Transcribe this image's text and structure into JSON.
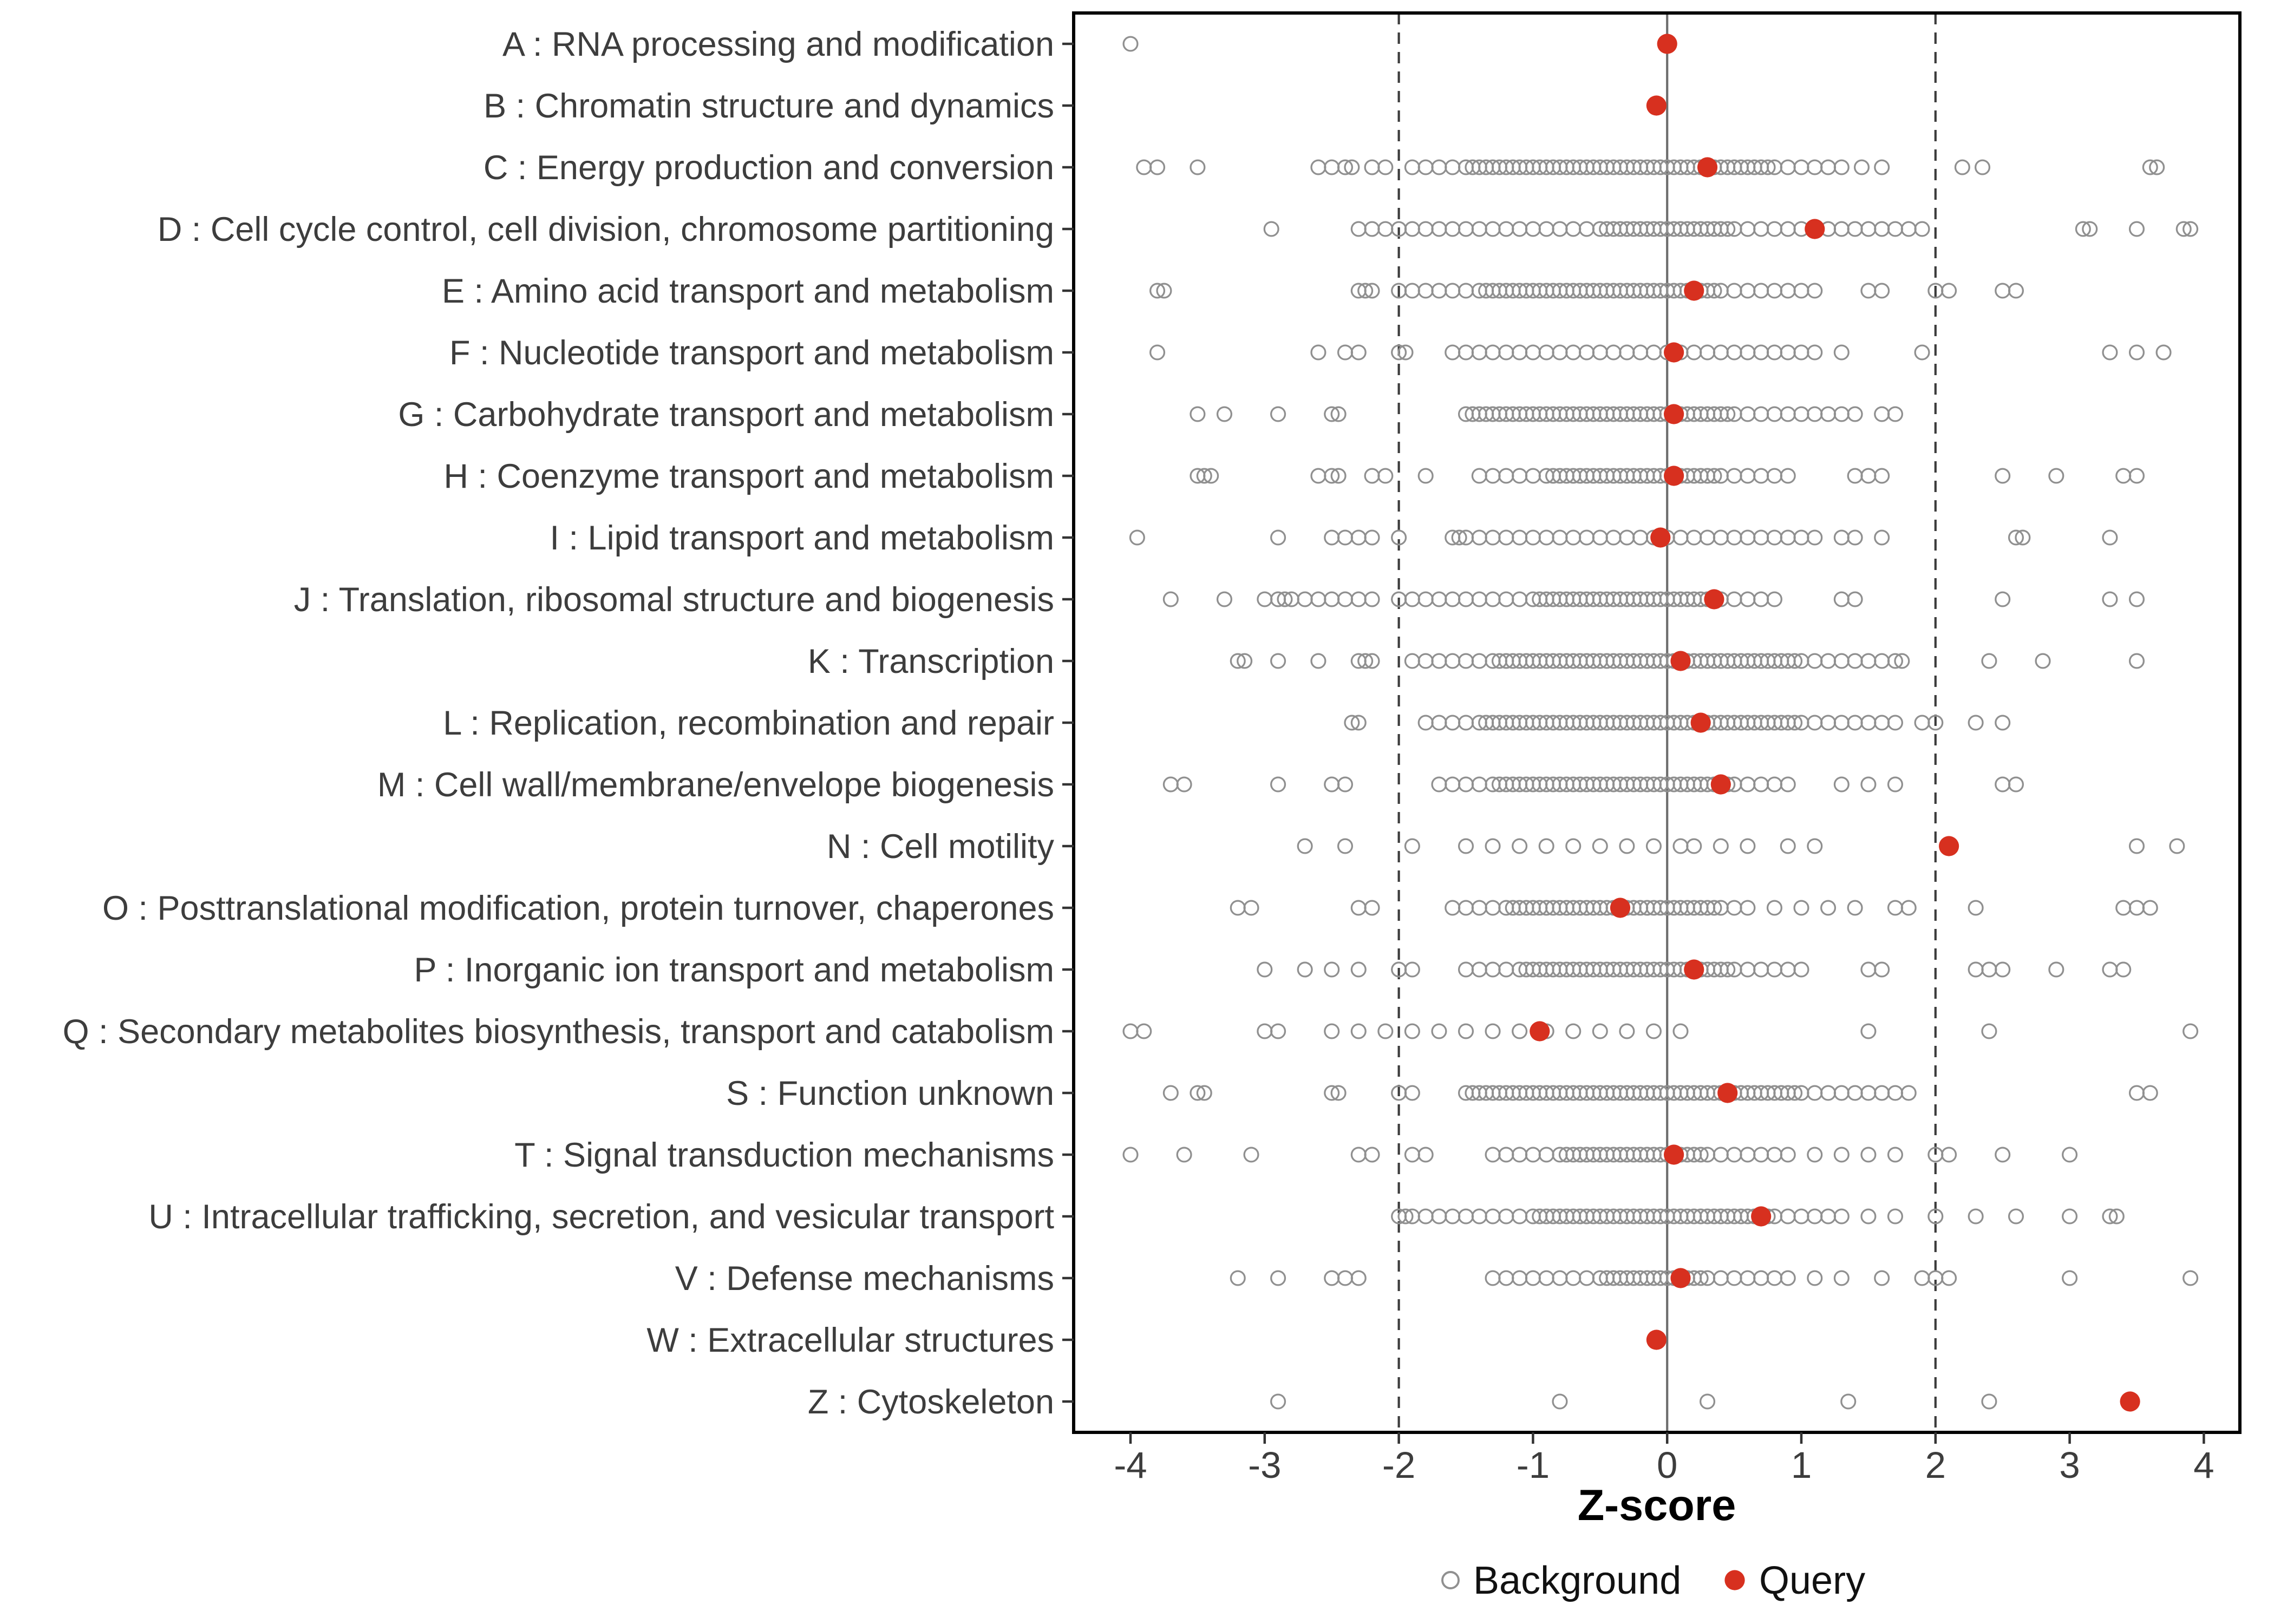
{
  "chart_data": {
    "type": "scatter",
    "variant": "strip-dot-plot",
    "xlabel": "Z-score",
    "xlim": [
      -4.45,
      4.3
    ],
    "x_ticks": [
      -4,
      -3,
      -2,
      -1,
      0,
      1,
      2,
      3,
      4
    ],
    "reference_lines": {
      "solid": [
        0
      ],
      "dashed": [
        -2,
        2
      ]
    },
    "legend": {
      "background_label": "Background",
      "query_label": "Query"
    },
    "colors": {
      "background_stroke": "#909090",
      "query_fill": "#d7301f",
      "zero_line": "#6e6e6e",
      "ref_line": "#3c3c3c",
      "panel_border": "#000000",
      "label_text": "#3d3d3d"
    },
    "categories": [
      {
        "label": "A : RNA processing and modification",
        "query": 0.0,
        "background": [
          -4.0
        ]
      },
      {
        "label": "B : Chromatin structure and dynamics",
        "query": -0.08,
        "background": []
      },
      {
        "label": "C : Energy production and conversion",
        "query": 0.3,
        "background": [
          -3.9,
          -3.8,
          -3.5,
          -2.6,
          -2.5,
          -2.4,
          -2.35,
          -2.2,
          -2.1,
          -1.9,
          -1.8,
          -1.7,
          -1.6,
          -1.5,
          -1.45,
          -1.4,
          -1.35,
          -1.3,
          -1.25,
          -1.2,
          -1.15,
          -1.1,
          -1.05,
          -1.0,
          -0.95,
          -0.9,
          -0.85,
          -0.8,
          -0.75,
          -0.7,
          -0.65,
          -0.6,
          -0.55,
          -0.5,
          -0.45,
          -0.4,
          -0.35,
          -0.3,
          -0.25,
          -0.2,
          -0.15,
          -0.1,
          -0.05,
          0.0,
          0.05,
          0.1,
          0.15,
          0.2,
          0.25,
          0.3,
          0.35,
          0.4,
          0.45,
          0.5,
          0.55,
          0.6,
          0.65,
          0.7,
          0.75,
          0.8,
          0.9,
          1.0,
          1.1,
          1.2,
          1.3,
          1.45,
          1.6,
          2.2,
          2.35,
          3.6,
          3.65
        ]
      },
      {
        "label": "D : Cell cycle control, cell division, chromosome partitioning",
        "query": 1.1,
        "background": [
          -2.95,
          -2.3,
          -2.2,
          -2.1,
          -2.0,
          -1.9,
          -1.8,
          -1.7,
          -1.6,
          -1.5,
          -1.4,
          -1.3,
          -1.2,
          -1.1,
          -1.0,
          -0.9,
          -0.8,
          -0.7,
          -0.6,
          -0.5,
          -0.45,
          -0.4,
          -0.35,
          -0.3,
          -0.25,
          -0.2,
          -0.15,
          -0.1,
          -0.05,
          0.0,
          0.05,
          0.1,
          0.15,
          0.2,
          0.25,
          0.3,
          0.35,
          0.4,
          0.45,
          0.5,
          0.6,
          0.7,
          0.8,
          0.9,
          1.0,
          1.1,
          1.2,
          1.3,
          1.4,
          1.5,
          1.6,
          1.7,
          1.8,
          1.9,
          3.1,
          3.15,
          3.5,
          3.85,
          3.9
        ]
      },
      {
        "label": "E : Amino acid transport and metabolism",
        "query": 0.2,
        "background": [
          -3.8,
          -3.75,
          -2.3,
          -2.25,
          -2.2,
          -2.0,
          -1.9,
          -1.8,
          -1.7,
          -1.6,
          -1.5,
          -1.4,
          -1.35,
          -1.3,
          -1.25,
          -1.2,
          -1.15,
          -1.1,
          -1.05,
          -1.0,
          -0.95,
          -0.9,
          -0.85,
          -0.8,
          -0.75,
          -0.7,
          -0.65,
          -0.6,
          -0.55,
          -0.5,
          -0.45,
          -0.4,
          -0.35,
          -0.3,
          -0.25,
          -0.2,
          -0.15,
          -0.1,
          -0.05,
          0.0,
          0.05,
          0.1,
          0.15,
          0.2,
          0.25,
          0.3,
          0.35,
          0.4,
          0.5,
          0.6,
          0.7,
          0.8,
          0.9,
          1.0,
          1.1,
          1.5,
          1.6,
          2.0,
          2.1,
          2.5,
          2.6
        ]
      },
      {
        "label": "F : Nucleotide transport and metabolism",
        "query": 0.05,
        "background": [
          -3.8,
          -2.6,
          -2.4,
          -2.3,
          -2.0,
          -1.95,
          -1.6,
          -1.5,
          -1.4,
          -1.3,
          -1.2,
          -1.1,
          -1.0,
          -0.9,
          -0.8,
          -0.7,
          -0.6,
          -0.5,
          -0.4,
          -0.3,
          -0.2,
          -0.1,
          0.0,
          0.1,
          0.2,
          0.3,
          0.4,
          0.5,
          0.6,
          0.7,
          0.8,
          0.9,
          1.0,
          1.1,
          1.3,
          1.9,
          3.3,
          3.5,
          3.7
        ]
      },
      {
        "label": "G : Carbohydrate transport and metabolism",
        "query": 0.05,
        "background": [
          -3.5,
          -3.3,
          -2.9,
          -2.5,
          -2.45,
          -1.5,
          -1.45,
          -1.4,
          -1.35,
          -1.3,
          -1.25,
          -1.2,
          -1.15,
          -1.1,
          -1.05,
          -1.0,
          -0.95,
          -0.9,
          -0.85,
          -0.8,
          -0.75,
          -0.7,
          -0.65,
          -0.6,
          -0.55,
          -0.5,
          -0.45,
          -0.4,
          -0.35,
          -0.3,
          -0.25,
          -0.2,
          -0.15,
          -0.1,
          -0.05,
          0.0,
          0.05,
          0.1,
          0.15,
          0.2,
          0.25,
          0.3,
          0.35,
          0.4,
          0.45,
          0.5,
          0.6,
          0.7,
          0.8,
          0.9,
          1.0,
          1.1,
          1.2,
          1.3,
          1.4,
          1.6,
          1.7
        ]
      },
      {
        "label": "H : Coenzyme transport and metabolism",
        "query": 0.05,
        "background": [
          -3.5,
          -3.45,
          -3.4,
          -2.6,
          -2.5,
          -2.45,
          -2.2,
          -2.1,
          -1.8,
          -1.4,
          -1.3,
          -1.2,
          -1.1,
          -1.0,
          -0.9,
          -0.85,
          -0.8,
          -0.75,
          -0.7,
          -0.65,
          -0.6,
          -0.55,
          -0.5,
          -0.45,
          -0.4,
          -0.35,
          -0.3,
          -0.25,
          -0.2,
          -0.15,
          -0.1,
          -0.05,
          0.0,
          0.05,
          0.1,
          0.15,
          0.2,
          0.25,
          0.3,
          0.35,
          0.4,
          0.5,
          0.6,
          0.7,
          0.8,
          0.9,
          1.4,
          1.5,
          1.6,
          2.5,
          2.9,
          3.4,
          3.5
        ]
      },
      {
        "label": "I : Lipid transport and metabolism",
        "query": -0.05,
        "background": [
          -3.95,
          -2.9,
          -2.5,
          -2.4,
          -2.3,
          -2.2,
          -2.0,
          -1.6,
          -1.55,
          -1.5,
          -1.4,
          -1.3,
          -1.2,
          -1.1,
          -1.0,
          -0.9,
          -0.8,
          -0.7,
          -0.6,
          -0.5,
          -0.4,
          -0.3,
          -0.2,
          -0.1,
          0.0,
          0.1,
          0.2,
          0.3,
          0.4,
          0.5,
          0.6,
          0.7,
          0.8,
          0.9,
          1.0,
          1.1,
          1.3,
          1.4,
          1.6,
          2.6,
          2.65,
          3.3
        ]
      },
      {
        "label": "J : Translation, ribosomal structure and biogenesis",
        "query": 0.35,
        "background": [
          -3.7,
          -3.3,
          -3.0,
          -2.9,
          -2.85,
          -2.8,
          -2.7,
          -2.6,
          -2.5,
          -2.4,
          -2.3,
          -2.2,
          -2.0,
          -1.9,
          -1.8,
          -1.7,
          -1.6,
          -1.5,
          -1.4,
          -1.3,
          -1.2,
          -1.1,
          -1.0,
          -0.95,
          -0.9,
          -0.85,
          -0.8,
          -0.75,
          -0.7,
          -0.65,
          -0.6,
          -0.55,
          -0.5,
          -0.45,
          -0.4,
          -0.35,
          -0.3,
          -0.25,
          -0.2,
          -0.15,
          -0.1,
          -0.05,
          0.0,
          0.05,
          0.1,
          0.15,
          0.2,
          0.25,
          0.3,
          0.35,
          0.4,
          0.5,
          0.6,
          0.7,
          0.8,
          1.3,
          1.4,
          2.5,
          3.3,
          3.5
        ]
      },
      {
        "label": "K : Transcription",
        "query": 0.1,
        "background": [
          -3.2,
          -3.15,
          -2.9,
          -2.6,
          -2.3,
          -2.25,
          -2.2,
          -1.9,
          -1.8,
          -1.7,
          -1.6,
          -1.5,
          -1.4,
          -1.3,
          -1.25,
          -1.2,
          -1.15,
          -1.1,
          -1.05,
          -1.0,
          -0.95,
          -0.9,
          -0.85,
          -0.8,
          -0.75,
          -0.7,
          -0.65,
          -0.6,
          -0.55,
          -0.5,
          -0.45,
          -0.4,
          -0.35,
          -0.3,
          -0.25,
          -0.2,
          -0.15,
          -0.1,
          -0.05,
          0.0,
          0.05,
          0.1,
          0.15,
          0.2,
          0.25,
          0.3,
          0.35,
          0.4,
          0.45,
          0.5,
          0.55,
          0.6,
          0.65,
          0.7,
          0.75,
          0.8,
          0.85,
          0.9,
          0.95,
          1.0,
          1.1,
          1.2,
          1.3,
          1.4,
          1.5,
          1.6,
          1.7,
          1.75,
          2.4,
          2.8,
          3.5
        ]
      },
      {
        "label": "L : Replication, recombination and repair",
        "query": 0.25,
        "background": [
          -2.35,
          -2.3,
          -1.8,
          -1.7,
          -1.6,
          -1.5,
          -1.4,
          -1.35,
          -1.3,
          -1.25,
          -1.2,
          -1.15,
          -1.1,
          -1.05,
          -1.0,
          -0.95,
          -0.9,
          -0.85,
          -0.8,
          -0.75,
          -0.7,
          -0.65,
          -0.6,
          -0.55,
          -0.5,
          -0.45,
          -0.4,
          -0.35,
          -0.3,
          -0.25,
          -0.2,
          -0.15,
          -0.1,
          -0.05,
          0.0,
          0.05,
          0.1,
          0.15,
          0.2,
          0.25,
          0.3,
          0.35,
          0.4,
          0.45,
          0.5,
          0.55,
          0.6,
          0.65,
          0.7,
          0.75,
          0.8,
          0.85,
          0.9,
          0.95,
          1.0,
          1.1,
          1.2,
          1.3,
          1.4,
          1.5,
          1.6,
          1.7,
          1.9,
          2.0,
          2.3,
          2.5
        ]
      },
      {
        "label": "M : Cell wall/membrane/envelope biogenesis",
        "query": 0.4,
        "background": [
          -3.7,
          -3.6,
          -2.9,
          -2.5,
          -2.4,
          -1.7,
          -1.6,
          -1.5,
          -1.4,
          -1.3,
          -1.25,
          -1.2,
          -1.15,
          -1.1,
          -1.05,
          -1.0,
          -0.95,
          -0.9,
          -0.85,
          -0.8,
          -0.75,
          -0.7,
          -0.65,
          -0.6,
          -0.55,
          -0.5,
          -0.45,
          -0.4,
          -0.35,
          -0.3,
          -0.25,
          -0.2,
          -0.15,
          -0.1,
          -0.05,
          0.0,
          0.05,
          0.1,
          0.15,
          0.2,
          0.25,
          0.3,
          0.35,
          0.4,
          0.45,
          0.5,
          0.6,
          0.7,
          0.8,
          0.9,
          1.3,
          1.5,
          1.7,
          2.5,
          2.6
        ]
      },
      {
        "label": "N : Cell motility",
        "query": 2.1,
        "background": [
          -2.7,
          -2.4,
          -1.9,
          -1.5,
          -1.3,
          -1.1,
          -0.9,
          -0.7,
          -0.5,
          -0.3,
          -0.1,
          0.1,
          0.2,
          0.4,
          0.6,
          0.9,
          1.1,
          3.5,
          3.8
        ]
      },
      {
        "label": "O : Posttranslational modification, protein turnover, chaperones",
        "query": -0.35,
        "background": [
          -3.2,
          -3.1,
          -2.3,
          -2.2,
          -1.6,
          -1.5,
          -1.4,
          -1.3,
          -1.2,
          -1.15,
          -1.1,
          -1.05,
          -1.0,
          -0.95,
          -0.9,
          -0.85,
          -0.8,
          -0.75,
          -0.7,
          -0.65,
          -0.6,
          -0.55,
          -0.5,
          -0.45,
          -0.4,
          -0.35,
          -0.3,
          -0.25,
          -0.2,
          -0.15,
          -0.1,
          -0.05,
          0.0,
          0.05,
          0.1,
          0.15,
          0.2,
          0.25,
          0.3,
          0.35,
          0.4,
          0.5,
          0.6,
          0.8,
          1.0,
          1.2,
          1.4,
          1.7,
          1.8,
          2.3,
          3.4,
          3.5,
          3.6
        ]
      },
      {
        "label": "P : Inorganic ion transport and metabolism",
        "query": 0.2,
        "background": [
          -3.0,
          -2.7,
          -2.5,
          -2.3,
          -2.0,
          -1.9,
          -1.5,
          -1.4,
          -1.3,
          -1.2,
          -1.1,
          -1.05,
          -1.0,
          -0.95,
          -0.9,
          -0.85,
          -0.8,
          -0.75,
          -0.7,
          -0.65,
          -0.6,
          -0.55,
          -0.5,
          -0.45,
          -0.4,
          -0.35,
          -0.3,
          -0.25,
          -0.2,
          -0.15,
          -0.1,
          -0.05,
          0.0,
          0.05,
          0.1,
          0.15,
          0.2,
          0.25,
          0.3,
          0.35,
          0.4,
          0.45,
          0.5,
          0.6,
          0.7,
          0.8,
          0.9,
          1.0,
          1.5,
          1.6,
          2.3,
          2.4,
          2.5,
          2.9,
          3.3,
          3.4
        ]
      },
      {
        "label": "Q : Secondary metabolites biosynthesis, transport and catabolism",
        "query": -0.95,
        "background": [
          -4.0,
          -3.9,
          -3.0,
          -2.9,
          -2.5,
          -2.3,
          -2.1,
          -1.9,
          -1.7,
          -1.5,
          -1.3,
          -1.1,
          -0.9,
          -0.7,
          -0.5,
          -0.3,
          -0.1,
          0.1,
          1.5,
          2.4,
          3.9
        ]
      },
      {
        "label": "S : Function unknown",
        "query": 0.45,
        "background": [
          -3.7,
          -3.5,
          -3.45,
          -2.5,
          -2.45,
          -2.0,
          -1.9,
          -1.5,
          -1.45,
          -1.4,
          -1.35,
          -1.3,
          -1.25,
          -1.2,
          -1.15,
          -1.1,
          -1.05,
          -1.0,
          -0.95,
          -0.9,
          -0.85,
          -0.8,
          -0.75,
          -0.7,
          -0.65,
          -0.6,
          -0.55,
          -0.5,
          -0.45,
          -0.4,
          -0.35,
          -0.3,
          -0.25,
          -0.2,
          -0.15,
          -0.1,
          -0.05,
          0.0,
          0.05,
          0.1,
          0.15,
          0.2,
          0.25,
          0.3,
          0.35,
          0.4,
          0.45,
          0.5,
          0.55,
          0.6,
          0.65,
          0.7,
          0.75,
          0.8,
          0.85,
          0.9,
          0.95,
          1.0,
          1.1,
          1.2,
          1.3,
          1.4,
          1.5,
          1.6,
          1.7,
          1.8,
          3.5,
          3.6
        ]
      },
      {
        "label": "T : Signal transduction mechanisms",
        "query": 0.05,
        "background": [
          -4.0,
          -3.6,
          -3.1,
          -2.3,
          -2.2,
          -1.9,
          -1.8,
          -1.3,
          -1.2,
          -1.1,
          -1.0,
          -0.9,
          -0.8,
          -0.75,
          -0.7,
          -0.65,
          -0.6,
          -0.55,
          -0.5,
          -0.45,
          -0.4,
          -0.35,
          -0.3,
          -0.25,
          -0.2,
          -0.15,
          -0.1,
          -0.05,
          0.0,
          0.05,
          0.1,
          0.15,
          0.2,
          0.25,
          0.3,
          0.4,
          0.5,
          0.6,
          0.7,
          0.8,
          0.9,
          1.1,
          1.3,
          1.5,
          1.7,
          2.0,
          2.1,
          2.5,
          3.0
        ]
      },
      {
        "label": "U : Intracellular trafficking, secretion, and vesicular transport",
        "query": 0.7,
        "background": [
          -2.0,
          -1.95,
          -1.9,
          -1.8,
          -1.7,
          -1.6,
          -1.5,
          -1.4,
          -1.3,
          -1.2,
          -1.1,
          -1.0,
          -0.95,
          -0.9,
          -0.85,
          -0.8,
          -0.75,
          -0.7,
          -0.65,
          -0.6,
          -0.55,
          -0.5,
          -0.45,
          -0.4,
          -0.35,
          -0.3,
          -0.25,
          -0.2,
          -0.15,
          -0.1,
          -0.05,
          0.0,
          0.05,
          0.1,
          0.15,
          0.2,
          0.25,
          0.3,
          0.35,
          0.4,
          0.45,
          0.5,
          0.55,
          0.6,
          0.65,
          0.7,
          0.75,
          0.8,
          0.9,
          1.0,
          1.1,
          1.2,
          1.3,
          1.5,
          1.7,
          2.0,
          2.3,
          2.6,
          3.0,
          3.3,
          3.35
        ]
      },
      {
        "label": "V : Defense mechanisms",
        "query": 0.1,
        "background": [
          -3.2,
          -2.9,
          -2.5,
          -2.4,
          -2.3,
          -1.3,
          -1.2,
          -1.1,
          -1.0,
          -0.9,
          -0.8,
          -0.7,
          -0.6,
          -0.5,
          -0.45,
          -0.4,
          -0.35,
          -0.3,
          -0.25,
          -0.2,
          -0.15,
          -0.1,
          -0.05,
          0.0,
          0.05,
          0.1,
          0.15,
          0.2,
          0.25,
          0.3,
          0.4,
          0.5,
          0.6,
          0.7,
          0.8,
          0.9,
          1.1,
          1.3,
          1.6,
          1.9,
          2.0,
          2.1,
          3.0,
          3.9
        ]
      },
      {
        "label": "W : Extracellular structures",
        "query": -0.08,
        "background": []
      },
      {
        "label": "Z : Cytoskeleton",
        "query": 3.45,
        "background": [
          -2.9,
          -0.8,
          0.3,
          1.35,
          2.4
        ]
      }
    ]
  }
}
